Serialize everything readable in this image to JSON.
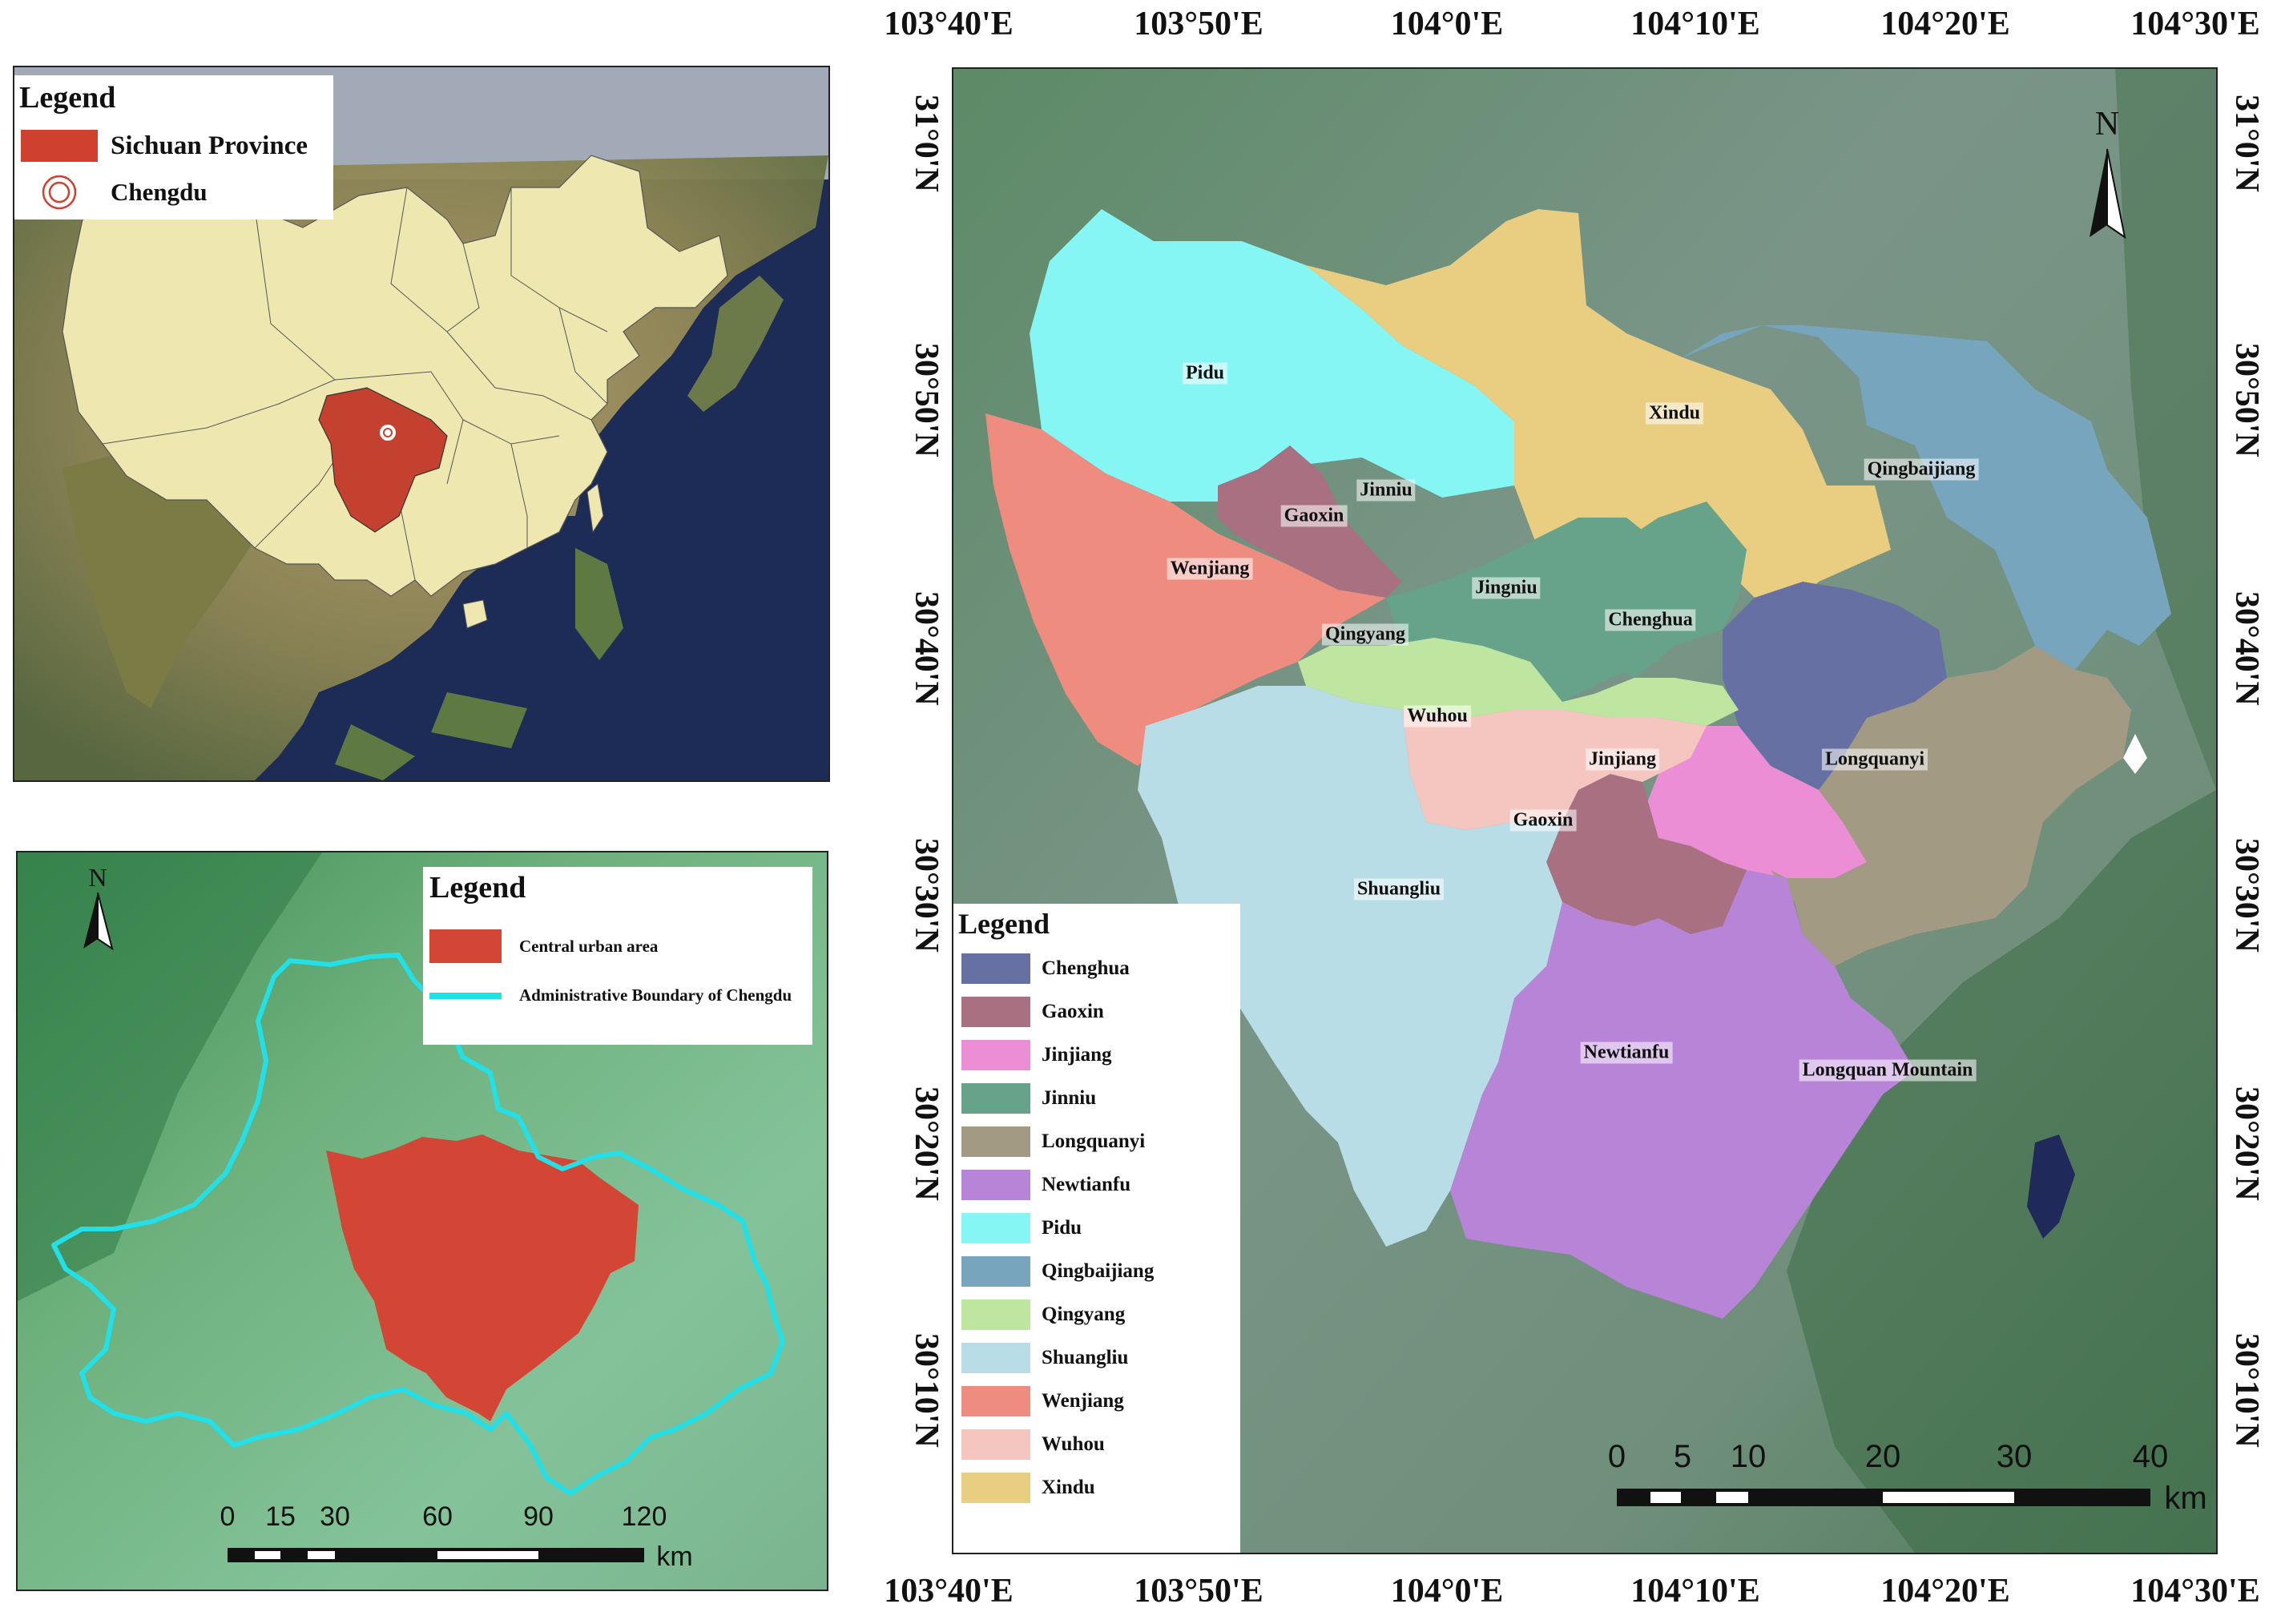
{
  "panel_china": {
    "legend": {
      "title": "Legend",
      "items": [
        {
          "label": "Sichuan Province",
          "symbol": "fill",
          "color": "#d0402e"
        },
        {
          "label": "Chengdu",
          "symbol": "concentric-circles-icon",
          "color": "#d0402e"
        }
      ]
    }
  },
  "panel_chengdu": {
    "legend": {
      "title": "Legend",
      "items": [
        {
          "label": "Central urban area",
          "symbol": "fill",
          "color": "#d0402e"
        },
        {
          "label": "Administrative Boundary of Chengdu",
          "symbol": "line",
          "color": "#22e0e8"
        }
      ]
    },
    "north_arrow": "N",
    "scale_bar": {
      "ticks": [
        "0",
        "15",
        "30",
        "60",
        "90",
        "120"
      ],
      "unit": "km"
    }
  },
  "panel_districts": {
    "top_longitudes": [
      "103°40'E",
      "103°50'E",
      "104°0'E",
      "104°10'E",
      "104°20'E",
      "104°30'E"
    ],
    "bottom_longitudes": [
      "103°40'E",
      "103°50'E",
      "104°0'E",
      "104°10'E",
      "104°20'E",
      "104°30'E"
    ],
    "left_latitudes": [
      "31°0'N",
      "30°50'N",
      "30°40'N",
      "30°30'N",
      "30°20'N",
      "30°10'N"
    ],
    "right_latitudes": [
      "31°0'N",
      "30°50'N",
      "30°40'N",
      "30°30'N",
      "30°20'N",
      "30°10'N"
    ],
    "north_arrow": "N",
    "scale_bar": {
      "ticks": [
        "0",
        "5",
        "10",
        "20",
        "30",
        "40"
      ],
      "unit": "km"
    },
    "labels": {
      "pidu": "Pidu",
      "xindu": "Xindu",
      "qingbaijiang": "Qingbaijiang",
      "jinniu": "Jinniu",
      "gaoxin_n": "Gaoxin",
      "wenjiang": "Wenjiang",
      "jingniu": "Jingniu",
      "chenghua": "Chenghua",
      "qingyang": "Qingyang",
      "wuhou": "Wuhou",
      "jinjiang": "Jinjiang",
      "longquanyi": "Longquanyi",
      "gaoxin_s": "Gaoxin",
      "shuangliu": "Shuangliu",
      "newtianfu": "Newtianfu",
      "longquan_mountain": "Longquan Mountain"
    },
    "legend": {
      "title": "Legend",
      "items": [
        {
          "label": "Chenghua",
          "color": "#6670a3"
        },
        {
          "label": "Gaoxin",
          "color": "#a87080"
        },
        {
          "label": "Jinjiang",
          "color": "#ec8ed6"
        },
        {
          "label": "Jinniu",
          "color": "#67a28a"
        },
        {
          "label": "Longquanyi",
          "color": "#a39a83"
        },
        {
          "label": "Newtianfu",
          "color": "#b884d8"
        },
        {
          "label": "Pidu",
          "color": "#86f6f4"
        },
        {
          "label": "Qingbaijiang",
          "color": "#77a5be"
        },
        {
          "label": "Qingyang",
          "color": "#bfe6a0"
        },
        {
          "label": "Shuangliu",
          "color": "#b9dde6"
        },
        {
          "label": "Wenjiang",
          "color": "#ef8c80"
        },
        {
          "label": "Wuhou",
          "color": "#f5c6c0"
        },
        {
          "label": "Xindu",
          "color": "#e9cd80"
        }
      ]
    }
  }
}
